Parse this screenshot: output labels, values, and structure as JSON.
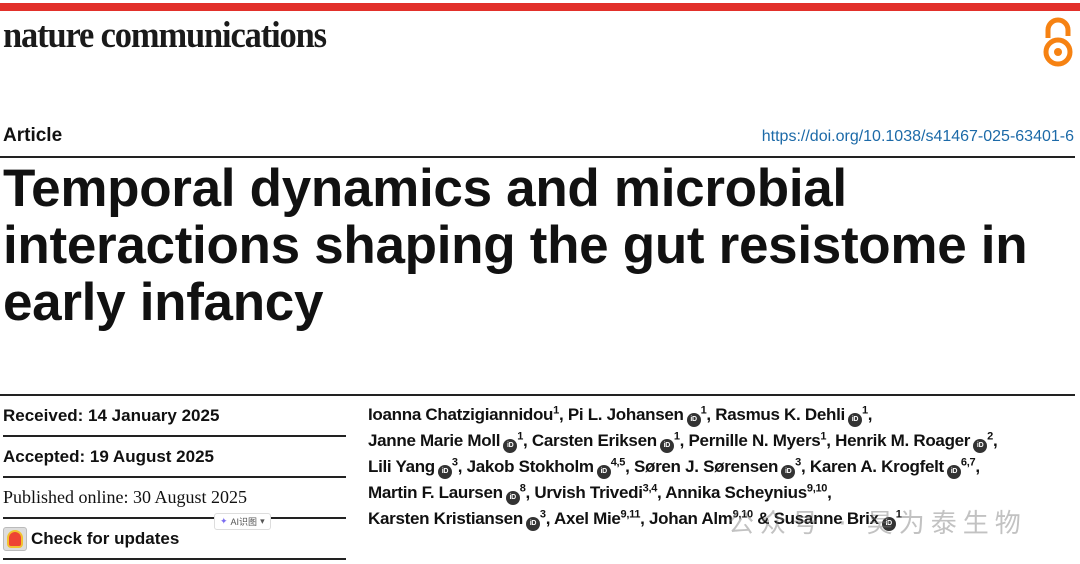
{
  "journal": {
    "name": "nature communications",
    "accent": "#e2302a",
    "open_access_icon": "open-access-icon"
  },
  "article_type": "Article",
  "doi": "https://doi.org/10.1038/s41467-025-63401-6",
  "title": "Temporal dynamics and microbial interactions shaping the gut resistome in early infancy",
  "dates": {
    "received": "Received: 14 January 2025",
    "accepted": "Accepted: 19 August 2025",
    "published": "Published online: 30 August 2025",
    "check_updates": "Check for updates"
  },
  "ai_button": "AI识图",
  "watermark": "公众号 · 昊为泰生物",
  "author_lines": [
    [
      {
        "name": "Ioanna Chatzigiannidou",
        "sup": "1",
        "orcid": false
      },
      {
        "name": "Pi L. Johansen",
        "sup": "1",
        "orcid": true
      },
      {
        "name": "Rasmus K. Dehli",
        "sup": "1",
        "orcid": true
      }
    ],
    [
      {
        "name": "Janne Marie Moll",
        "sup": "1",
        "orcid": true
      },
      {
        "name": "Carsten Eriksen",
        "sup": "1",
        "orcid": true
      },
      {
        "name": "Pernille N. Myers",
        "sup": "1",
        "orcid": false
      },
      {
        "name": "Henrik M. Roager",
        "sup": "2",
        "orcid": true
      }
    ],
    [
      {
        "name": "Lili Yang",
        "sup": "3",
        "orcid": true
      },
      {
        "name": "Jakob Stokholm",
        "sup": "4,5",
        "orcid": true
      },
      {
        "name": "Søren J. Sørensen",
        "sup": "3",
        "orcid": true
      },
      {
        "name": "Karen A. Krogfelt",
        "sup": "6,7",
        "orcid": true
      }
    ],
    [
      {
        "name": "Martin F. Laursen",
        "sup": "8",
        "orcid": true
      },
      {
        "name": "Urvish Trivedi",
        "sup": "3,4",
        "orcid": false
      },
      {
        "name": "Annika Scheynius",
        "sup": "9,10",
        "orcid": false
      }
    ],
    [
      {
        "name": "Karsten Kristiansen",
        "sup": "3",
        "orcid": true
      },
      {
        "name": "Axel Mie",
        "sup": "9,11",
        "orcid": false
      },
      {
        "name": "Johan Alm",
        "sup": "9,10",
        "orcid": false
      },
      {
        "name": "Susanne Brix",
        "sup": "1",
        "orcid": true
      }
    ]
  ]
}
